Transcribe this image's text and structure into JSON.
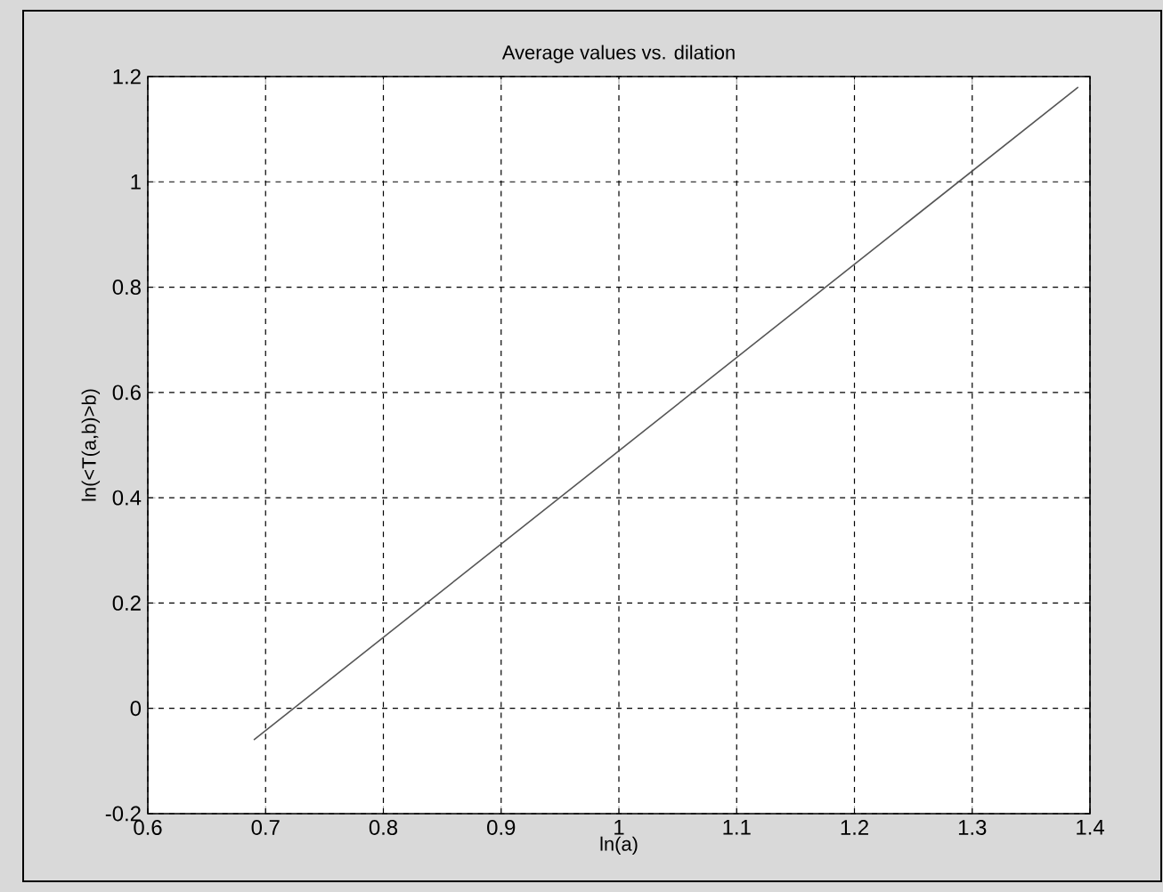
{
  "chart_data": {
    "type": "line",
    "title": "Average values vs. dilation",
    "xlabel": "ln(a)",
    "ylabel": "ln(<T(a,b)>b)",
    "x": [
      0.69,
      1.39
    ],
    "series": [
      {
        "color": "#555555",
        "values": [
          -0.06,
          1.18
        ]
      }
    ],
    "xlim": [
      0.6,
      1.4
    ],
    "ylim": [
      -0.2,
      1.2
    ],
    "xticks": [
      0.6,
      0.7,
      0.8,
      0.9,
      1,
      1.1,
      1.2,
      1.3,
      1.4
    ],
    "yticks": [
      -0.2,
      0,
      0.2,
      0.4,
      0.6,
      0.8,
      1,
      1.2
    ],
    "grid": true,
    "line_style": "solid",
    "marker": "none"
  }
}
